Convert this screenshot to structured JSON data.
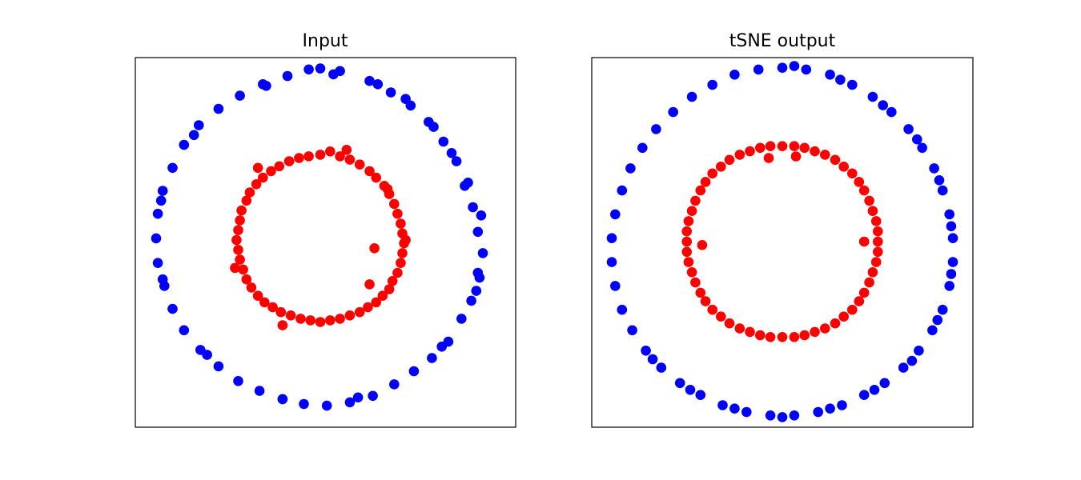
{
  "chart_data": [
    {
      "type": "scatter",
      "title": "Input",
      "xlabel": "",
      "ylabel": "",
      "xticks": [],
      "yticks": [],
      "grid": false,
      "series": [
        {
          "color": "#0000ff",
          "points": [
            [
              0.0,
              1.046
            ],
            [
              -0.07,
              1.04
            ],
            [
              0.12,
              1.03
            ],
            [
              0.3,
              0.97
            ],
            [
              0.43,
              0.9
            ],
            [
              0.55,
              0.82
            ],
            [
              0.66,
              0.72
            ],
            [
              0.75,
              0.6
            ],
            [
              0.83,
              0.48
            ],
            [
              0.88,
              0.33
            ],
            [
              0.93,
              0.2
            ],
            [
              0.96,
              0.05
            ],
            [
              0.99,
              -0.08
            ],
            [
              0.97,
              -0.23
            ],
            [
              0.92,
              -0.37
            ],
            [
              0.86,
              -0.48
            ],
            [
              0.78,
              -0.62
            ],
            [
              0.68,
              -0.72
            ],
            [
              0.57,
              -0.8
            ],
            [
              0.45,
              -0.88
            ],
            [
              0.32,
              -0.95
            ],
            [
              0.18,
              -0.99
            ],
            [
              0.04,
              -1.01
            ],
            [
              -0.1,
              -1.0
            ],
            [
              -0.23,
              -0.97
            ],
            [
              -0.37,
              -0.92
            ],
            [
              -0.5,
              -0.86
            ],
            [
              -0.62,
              -0.77
            ],
            [
              -0.73,
              -0.67
            ],
            [
              -0.83,
              -0.55
            ],
            [
              -0.9,
              -0.42
            ],
            [
              -0.95,
              -0.28
            ],
            [
              -0.99,
              -0.14
            ],
            [
              -1.0,
              0.01
            ],
            [
              -0.99,
              0.16
            ],
            [
              -0.96,
              0.3
            ],
            [
              -0.9,
              0.44
            ],
            [
              -0.83,
              0.58
            ],
            [
              -0.74,
              0.7
            ],
            [
              -0.62,
              0.8
            ],
            [
              -0.49,
              0.88
            ],
            [
              -0.35,
              0.95
            ],
            [
              -0.2,
              1.0
            ],
            [
              0.35,
              0.95
            ],
            [
              0.69,
              0.69
            ],
            [
              0.9,
              0.35
            ],
            [
              0.98,
              0.15
            ],
            [
              0.96,
              -0.2
            ],
            [
              0.74,
              -0.65
            ],
            [
              0.23,
              -0.96
            ],
            [
              -0.23,
              -0.97
            ],
            [
              -0.69,
              -0.7
            ],
            [
              -0.96,
              -0.24
            ],
            [
              -0.97,
              0.24
            ],
            [
              -0.77,
              0.64
            ],
            [
              -0.33,
              0.94
            ],
            [
              0.08,
              1.01
            ],
            [
              0.52,
              0.86
            ],
            [
              0.8,
              0.53
            ],
            [
              0.95,
              -0.31
            ]
          ]
        },
        {
          "color": "#ff0000",
          "points": [
            [
              0.0,
              0.52
            ],
            [
              0.12,
              0.51
            ],
            [
              0.24,
              0.46
            ],
            [
              0.34,
              0.38
            ],
            [
              0.42,
              0.28
            ],
            [
              0.47,
              0.16
            ],
            [
              0.5,
              0.04
            ],
            [
              0.5,
              -0.08
            ],
            [
              0.47,
              -0.2
            ],
            [
              0.42,
              -0.3
            ],
            [
              0.34,
              -0.38
            ],
            [
              0.24,
              -0.44
            ],
            [
              0.12,
              -0.48
            ],
            [
              0.0,
              -0.5
            ],
            [
              -0.12,
              -0.48
            ],
            [
              -0.24,
              -0.44
            ],
            [
              -0.34,
              -0.38
            ],
            [
              -0.42,
              -0.29
            ],
            [
              -0.47,
              -0.18
            ],
            [
              -0.5,
              -0.06
            ],
            [
              -0.5,
              0.06
            ],
            [
              -0.48,
              0.18
            ],
            [
              -0.43,
              0.29
            ],
            [
              -0.35,
              0.38
            ],
            [
              -0.25,
              0.45
            ],
            [
              -0.13,
              0.5
            ],
            [
              0.06,
              0.54
            ],
            [
              0.18,
              0.49
            ],
            [
              0.3,
              0.42
            ],
            [
              0.39,
              0.33
            ],
            [
              0.45,
              0.22
            ],
            [
              0.49,
              0.1
            ],
            [
              0.51,
              -0.02
            ],
            [
              0.49,
              -0.14
            ],
            [
              0.44,
              -0.25
            ],
            [
              0.38,
              -0.34
            ],
            [
              0.29,
              -0.41
            ],
            [
              0.18,
              -0.46
            ],
            [
              0.06,
              -0.49
            ],
            [
              -0.06,
              -0.49
            ],
            [
              -0.18,
              -0.46
            ],
            [
              -0.29,
              -0.41
            ],
            [
              -0.38,
              -0.34
            ],
            [
              -0.45,
              -0.24
            ],
            [
              -0.49,
              -0.12
            ],
            [
              -0.51,
              0.0
            ],
            [
              -0.49,
              0.12
            ],
            [
              -0.45,
              0.24
            ],
            [
              -0.39,
              0.34
            ],
            [
              -0.3,
              0.42
            ],
            [
              -0.19,
              0.48
            ],
            [
              -0.07,
              0.51
            ],
            [
              0.33,
              -0.05
            ],
            [
              0.52,
              0.0
            ],
            [
              -0.38,
              0.44
            ],
            [
              0.16,
              0.55
            ],
            [
              -0.52,
              -0.17
            ],
            [
              0.3,
              -0.27
            ],
            [
              -0.23,
              -0.52
            ],
            [
              0.41,
              0.31
            ]
          ]
        }
      ]
    },
    {
      "type": "scatter",
      "title": "tSNE output",
      "xlabel": "",
      "ylabel": "",
      "xticks": [],
      "yticks": [],
      "grid": false,
      "series": [
        {
          "color": "#0000ff",
          "points": [
            [
              0.0,
              1.02
            ],
            [
              0.14,
              1.01
            ],
            [
              0.28,
              0.98
            ],
            [
              0.41,
              0.92
            ],
            [
              0.53,
              0.85
            ],
            [
              0.64,
              0.76
            ],
            [
              0.74,
              0.66
            ],
            [
              0.82,
              0.55
            ],
            [
              0.89,
              0.43
            ],
            [
              0.94,
              0.3
            ],
            [
              0.98,
              0.16
            ],
            [
              1.0,
              0.02
            ],
            [
              1.0,
              -0.12
            ],
            [
              0.98,
              -0.26
            ],
            [
              0.94,
              -0.4
            ],
            [
              0.88,
              -0.52
            ],
            [
              0.8,
              -0.64
            ],
            [
              0.71,
              -0.74
            ],
            [
              0.6,
              -0.83
            ],
            [
              0.48,
              -0.9
            ],
            [
              0.35,
              -0.96
            ],
            [
              0.21,
              -1.0
            ],
            [
              0.07,
              -1.02
            ],
            [
              -0.07,
              -1.02
            ],
            [
              -0.21,
              -1.0
            ],
            [
              -0.35,
              -0.96
            ],
            [
              -0.48,
              -0.9
            ],
            [
              -0.6,
              -0.83
            ],
            [
              -0.71,
              -0.74
            ],
            [
              -0.8,
              -0.64
            ],
            [
              -0.88,
              -0.52
            ],
            [
              -0.94,
              -0.4
            ],
            [
              -0.98,
              -0.26
            ],
            [
              -1.0,
              -0.12
            ],
            [
              -1.0,
              0.02
            ],
            [
              -0.98,
              0.16
            ],
            [
              -0.94,
              0.3
            ],
            [
              -0.89,
              0.43
            ],
            [
              -0.82,
              0.55
            ],
            [
              -0.74,
              0.66
            ],
            [
              -0.64,
              0.76
            ],
            [
              -0.53,
              0.85
            ],
            [
              -0.41,
              0.92
            ],
            [
              -0.28,
              0.98
            ],
            [
              -0.14,
              1.01
            ],
            [
              0.07,
              1.03
            ],
            [
              0.34,
              0.95
            ],
            [
              0.59,
              0.8
            ],
            [
              0.79,
              0.6
            ],
            [
              0.92,
              0.36
            ],
            [
              0.99,
              0.09
            ],
            [
              0.99,
              -0.19
            ],
            [
              0.91,
              -0.46
            ],
            [
              0.76,
              -0.7
            ],
            [
              0.54,
              -0.87
            ],
            [
              0.28,
              -0.98
            ],
            [
              0.0,
              -1.03
            ],
            [
              -0.28,
              -0.98
            ],
            [
              -0.54,
              -0.87
            ],
            [
              -0.76,
              -0.69
            ]
          ]
        },
        {
          "color": "#ff0000",
          "points": [
            [
              0.0,
              0.56
            ],
            [
              0.13,
              0.55
            ],
            [
              0.25,
              0.51
            ],
            [
              0.36,
              0.44
            ],
            [
              0.45,
              0.35
            ],
            [
              0.51,
              0.24
            ],
            [
              0.55,
              0.12
            ],
            [
              0.56,
              0.0
            ],
            [
              0.55,
              -0.12
            ],
            [
              0.51,
              -0.24
            ],
            [
              0.45,
              -0.35
            ],
            [
              0.36,
              -0.44
            ],
            [
              0.25,
              -0.51
            ],
            [
              0.13,
              -0.55
            ],
            [
              0.0,
              -0.56
            ],
            [
              -0.13,
              -0.55
            ],
            [
              -0.25,
              -0.51
            ],
            [
              -0.36,
              -0.44
            ],
            [
              -0.45,
              -0.35
            ],
            [
              -0.51,
              -0.24
            ],
            [
              -0.55,
              -0.12
            ],
            [
              -0.56,
              0.0
            ],
            [
              -0.55,
              0.12
            ],
            [
              -0.51,
              0.24
            ],
            [
              -0.45,
              0.35
            ],
            [
              -0.36,
              0.44
            ],
            [
              -0.25,
              0.51
            ],
            [
              -0.13,
              0.55
            ],
            [
              0.07,
              0.56
            ],
            [
              0.19,
              0.53
            ],
            [
              0.31,
              0.48
            ],
            [
              0.41,
              0.4
            ],
            [
              0.48,
              0.3
            ],
            [
              0.53,
              0.18
            ],
            [
              0.56,
              0.06
            ],
            [
              0.56,
              -0.06
            ],
            [
              0.53,
              -0.18
            ],
            [
              0.48,
              -0.3
            ],
            [
              0.41,
              -0.4
            ],
            [
              0.31,
              -0.48
            ],
            [
              0.19,
              -0.53
            ],
            [
              0.07,
              -0.56
            ],
            [
              -0.07,
              -0.56
            ],
            [
              -0.19,
              -0.53
            ],
            [
              -0.31,
              -0.48
            ],
            [
              -0.41,
              -0.4
            ],
            [
              -0.48,
              -0.3
            ],
            [
              -0.53,
              -0.18
            ],
            [
              -0.56,
              -0.06
            ],
            [
              -0.56,
              0.06
            ],
            [
              -0.53,
              0.18
            ],
            [
              -0.48,
              0.3
            ],
            [
              -0.41,
              0.4
            ],
            [
              -0.31,
              0.48
            ],
            [
              -0.19,
              0.53
            ],
            [
              -0.07,
              0.56
            ],
            [
              0.08,
              0.5
            ],
            [
              -0.08,
              0.49
            ],
            [
              0.48,
              0.0
            ],
            [
              -0.47,
              -0.02
            ]
          ]
        }
      ]
    }
  ]
}
